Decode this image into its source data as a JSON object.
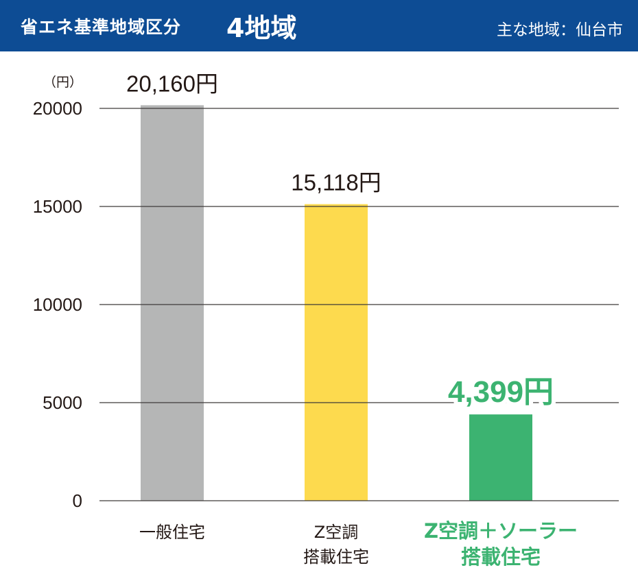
{
  "header": {
    "title": "省エネ基準地域区分",
    "region": "4地域",
    "city": "主な地域：仙台市"
  },
  "colors": {
    "header_bg": "#0d4c94",
    "bar_general": "#b5b6b6",
    "bar_zkuchou": "#fdda4e",
    "bar_solar": "#3cb371",
    "highlight_text": "#3cb371"
  },
  "chart_data": {
    "type": "bar",
    "unit_label": "（円）",
    "categories": [
      [
        "一般住宅"
      ],
      [
        "Z空調",
        "搭載住宅"
      ],
      [
        "Z空調＋ソーラー",
        "搭載住宅"
      ]
    ],
    "values": [
      20160,
      15118,
      4399
    ],
    "value_labels": [
      "20,160円",
      "15,118円",
      "4,399円"
    ],
    "bar_colors": [
      "#b5b6b6",
      "#fdda4e",
      "#3cb371"
    ],
    "highlight_index": 2,
    "yticks": [
      0,
      5000,
      10000,
      15000,
      20000
    ],
    "ylim": [
      0,
      20000
    ],
    "grid": true
  }
}
